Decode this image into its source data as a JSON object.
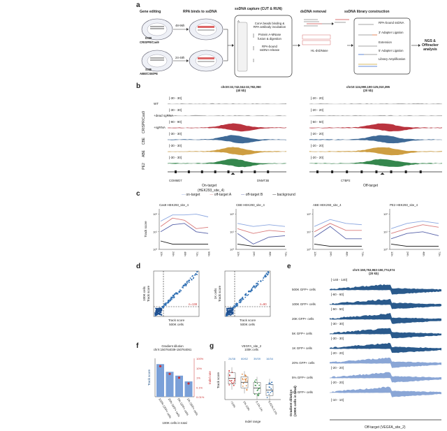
{
  "panels": {
    "a": {
      "label": "a",
      "headers": [
        "Gene editing",
        "RPA binds to ssDNA",
        "ssDNA capture (CUT & RUN)",
        "dsDNA removal",
        "ssDNA library construction"
      ],
      "dsb": "DSB",
      "ssb": "SSB",
      "crispr_label": "CRISPR/Cas9",
      "abe_label": "ABE/CSE/PE",
      "time1": "48-96h",
      "time2": "24-48h",
      "capture_steps": [
        "ConA beads binding &",
        "RPA antibody incubation",
        "Protein A-MNase",
        "fusion & digestion",
        "RPA-bound",
        "ssDNA release"
      ],
      "capture_side": "A",
      "dsdna": "HL-dsDNase",
      "lib_steps": [
        "RPA-bound ssDNA",
        "3' Adapter Ligation",
        "Extension",
        "5' Adapter Ligation",
        "Library Amplification"
      ],
      "ngs": [
        "NGS &",
        "Offtracker",
        "analysis"
      ]
    },
    "b": {
      "label": "b",
      "left_coord": "chr20:32,742,044-32,782,050",
      "left_kb": "(40 kb)",
      "right_coord": "chr10:124,990,190-125,010,395",
      "right_kb": "(20 kb)",
      "left_ranges": [
        "[-30 - 30]",
        "[-30 - 30]",
        "[-90 - 90]",
        "[-30 - 30]",
        "[-30 - 30]",
        "[-30 - 30]"
      ],
      "right_ranges": [
        "[-20 - 20]",
        "[-20 - 20]",
        "[-50 - 50]",
        "[-20 - 20]",
        "[-20 - 20]",
        "[-20 - 20]"
      ],
      "row_labels": [
        "WT",
        "+dead sgRNA",
        "+sgRNA"
      ],
      "side_groups": [
        "CRISPR/Cas9",
        "CBE",
        "ABE",
        "PE2"
      ],
      "left_genes": [
        "COMMD7",
        "DNMT3B"
      ],
      "right_genes": [
        "CTBP2"
      ],
      "on_target": "On-target",
      "on_target_site": "(HEK293_site_4)",
      "off_target": "Off-target"
    },
    "c": {
      "label": "c",
      "legend": [
        "on-target",
        "off-target A",
        "off-target B",
        "background"
      ],
      "titles": [
        "Cas9 HEK293_site_4",
        "CBE HEK293_site_4",
        "ABE HEK293_site_4",
        "PE2 HEK293_site_4"
      ],
      "ylabel": "Track score",
      "yticks": [
        "10²",
        "10¹",
        "10⁰"
      ],
      "xticks": [
        "12h",
        "24h",
        "48h",
        "72h",
        "96h"
      ],
      "xticks_short": [
        "12h",
        "24h",
        "48h",
        "72h"
      ]
    },
    "d": {
      "label": "d",
      "left_ylabel": [
        "100K cells",
        "Track score"
      ],
      "right_ylabel": [
        "1K cells",
        "Track score"
      ],
      "xlabel": [
        "Track score",
        "500K cells"
      ],
      "left_n": "n=138",
      "right_n": "n=90"
    },
    "e": {
      "label": "e",
      "coord": "chrX:150,753,963-150,774,074",
      "kb": "(20 kb)",
      "ranges": [
        "[-140 - 140]",
        "[-60 - 60]",
        "[-50 - 50]",
        "[-30 - 30]",
        "[-30 - 30]",
        "[-20 - 20]",
        "[-20 - 20]",
        "[-20 - 20]",
        "[-10 - 10]"
      ],
      "rows": [
        "500K GFP+ cells",
        "100K GFP+ cells",
        "20K GFP+ cells",
        "5K GFP+ cells",
        "1K GFP+ cells",
        "20% GFP+ cells",
        "5% GFP+ cells",
        "1% GFP+ cells"
      ],
      "side": [
        "Gradient dilution",
        "(100K cells in total)"
      ],
      "foot": "Off-target (VEGFA_site_2)"
    },
    "f": {
      "label": "f",
      "title": [
        "Gradient dilution",
        "chrX:150764039-150764061"
      ],
      "ylabel": "Track score",
      "y2label": "Indel rate",
      "y2ticks": [
        "100%",
        "10%",
        "1%",
        "0.1%",
        "0.01%"
      ],
      "cats": [
        "100% GFP+ cells",
        "20% GFP+ cells",
        "5% GFP+ cells",
        "1% GFP+ cells"
      ],
      "xlabel": "100K cells in total"
    },
    "g": {
      "label": "g",
      "title": [
        "VEGFA_site_2",
        "100K cells"
      ],
      "ratios": [
        "24/38",
        "60/62",
        "39/39",
        "16/34"
      ],
      "ylabel": "Track score",
      "cats": [
        ">10%",
        "1%-10%",
        "0.1%-1%",
        "0.01%-0.1%"
      ],
      "xlabel": "Indel range"
    }
  },
  "chart_data": [
    {
      "type": "line",
      "title": "Cas9 HEK293_site_4",
      "ylabel": "Track score",
      "x": [
        "12h",
        "24h",
        "48h",
        "72h",
        "96h"
      ],
      "log_y": true,
      "series": [
        {
          "name": "on-target",
          "values": [
            40,
            90,
            90,
            100,
            70
          ]
        },
        {
          "name": "off-target A",
          "values": [
            20,
            60,
            45,
            15,
            18
          ]
        },
        {
          "name": "off-target B",
          "values": [
            10,
            25,
            30,
            10,
            8
          ]
        },
        {
          "name": "background",
          "values": [
            3,
            2,
            2,
            2,
            2
          ]
        }
      ]
    },
    {
      "type": "line",
      "title": "CBE HEK293_site_4",
      "ylabel": "Track score",
      "x": [
        "12h",
        "24h",
        "48h",
        "72h"
      ],
      "log_y": true,
      "series": [
        {
          "name": "on-target",
          "values": [
            30,
            20,
            25,
            20
          ]
        },
        {
          "name": "off-target A",
          "values": [
            15,
            8,
            12,
            10
          ]
        },
        {
          "name": "off-target B",
          "values": [
            8,
            2,
            5,
            6
          ]
        },
        {
          "name": "background",
          "values": [
            2,
            1.5,
            1.5,
            1.5
          ]
        }
      ]
    },
    {
      "type": "line",
      "title": "ABE HEK293_site_4",
      "ylabel": "Track score",
      "x": [
        "12h",
        "24h",
        "48h",
        "72h"
      ],
      "log_y": true,
      "series": [
        {
          "name": "on-target",
          "values": [
            20,
            50,
            30,
            25
          ]
        },
        {
          "name": "off-target A",
          "values": [
            10,
            30,
            12,
            12
          ]
        },
        {
          "name": "off-target B",
          "values": [
            5,
            20,
            4,
            4
          ]
        },
        {
          "name": "background",
          "values": [
            2,
            1.5,
            1.5,
            1.5
          ]
        }
      ]
    },
    {
      "type": "line",
      "title": "PE2 HEK293_site_4",
      "ylabel": "Track score",
      "x": [
        "12h",
        "24h",
        "48h",
        "72h"
      ],
      "log_y": true,
      "series": [
        {
          "name": "on-target",
          "values": [
            15,
            30,
            40,
            30
          ]
        },
        {
          "name": "off-target A",
          "values": [
            8,
            15,
            25,
            18
          ]
        },
        {
          "name": "off-target B",
          "values": [
            4,
            8,
            10,
            6
          ]
        },
        {
          "name": "background",
          "values": [
            2,
            1.5,
            1.5,
            1.5
          ]
        }
      ]
    },
    {
      "type": "bar",
      "title": "Gradient dilution chrX:150764039-150764061",
      "categories": [
        "100% GFP+ cells",
        "20% GFP+ cells",
        "5% GFP+ cells",
        "1% GFP+ cells"
      ],
      "values": [
        0.85,
        0.65,
        0.55,
        0.4
      ],
      "ylabel": "Track score"
    },
    {
      "type": "box",
      "title": "VEGFA_site_2 100K cells",
      "categories": [
        ">10%",
        "1%-10%",
        "0.1%-1%",
        "0.01%-0.1%"
      ],
      "medians": [
        0.55,
        0.45,
        0.3,
        0.25
      ],
      "ylabel": "Track score",
      "xlabel": "Indel range"
    }
  ]
}
